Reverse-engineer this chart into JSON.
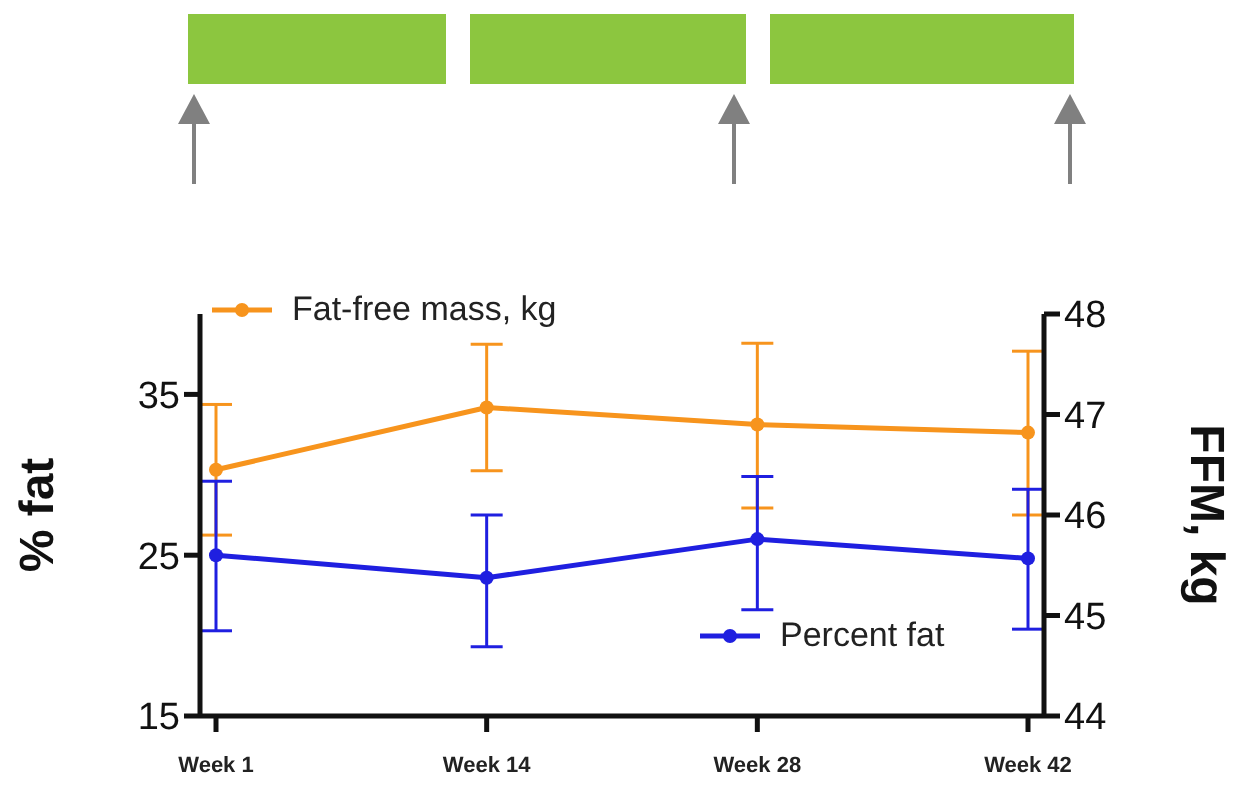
{
  "chart_data": {
    "type": "line",
    "ylabel": "% fat",
    "y2label": "FFM, kg",
    "categories": [
      "Week 1",
      "Week 14",
      "Week 28",
      "Week 42"
    ],
    "series": [
      {
        "name": "Fat-free mass, kg",
        "color": "#f7941d",
        "axis": "y2",
        "values": [
          46.45,
          47.07,
          46.9,
          46.82
        ],
        "errors": [
          [
            45.8,
            47.1
          ],
          [
            46.44,
            47.7
          ],
          [
            46.07,
            47.71
          ],
          [
            46.0,
            47.63
          ]
        ]
      },
      {
        "name": "Percent fat",
        "color": "#1f1fe0",
        "values": [
          25.0,
          23.6,
          26.0,
          24.8
        ],
        "errors": [
          [
            20.3,
            29.6
          ],
          [
            19.3,
            27.5
          ],
          [
            21.6,
            29.9
          ],
          [
            20.4,
            29.1
          ]
        ]
      }
    ],
    "ylim": [
      15,
      40
    ],
    "yticks": [
      15,
      25,
      35
    ],
    "y2lim": [
      44,
      48
    ],
    "y2ticks": [
      44,
      45,
      46,
      47,
      48
    ],
    "grid": false,
    "legend": "top left",
    "marker": "circle",
    "line_style": "solid"
  }
}
